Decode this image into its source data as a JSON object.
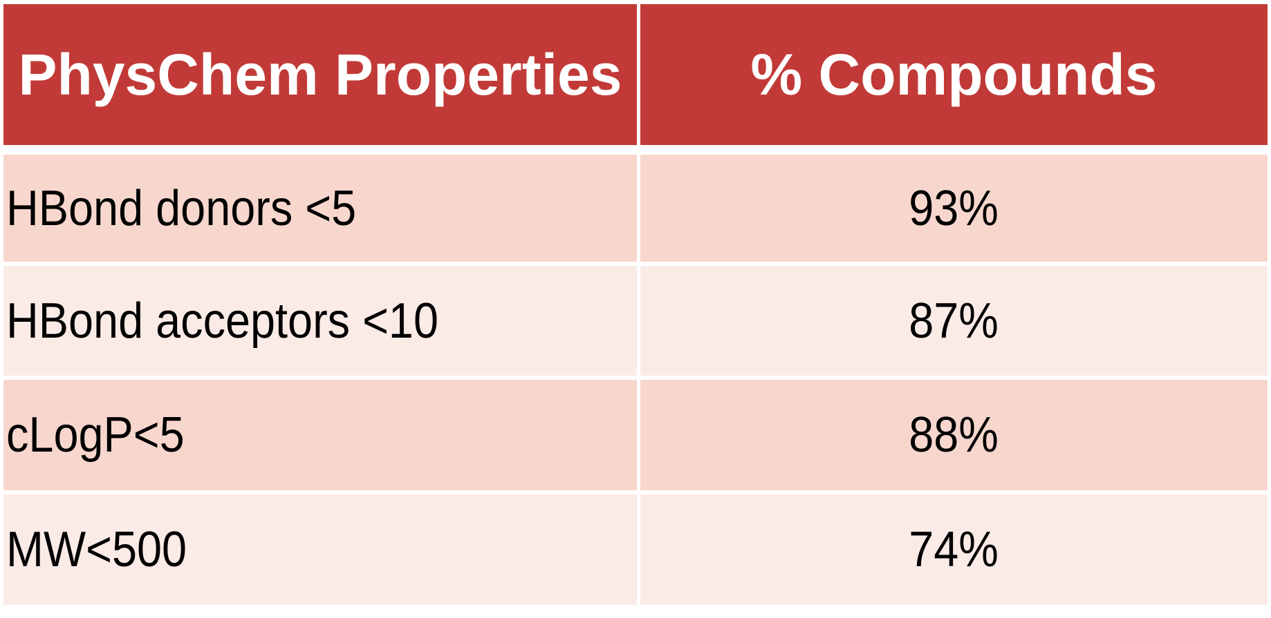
{
  "table": {
    "headers": [
      "PhysChem Properties",
      "% Compounds"
    ],
    "rows": [
      {
        "property": "HBond donors <5",
        "percent": "93%"
      },
      {
        "property": "HBond acceptors <10",
        "percent": "87%"
      },
      {
        "property": "cLogP<5",
        "percent": "88%"
      },
      {
        "property": "MW<500",
        "percent": "74%"
      }
    ],
    "colors": {
      "header": "#c13a37",
      "row_odd": "#f7d7cd",
      "row_even": "#fbebe7"
    }
  }
}
